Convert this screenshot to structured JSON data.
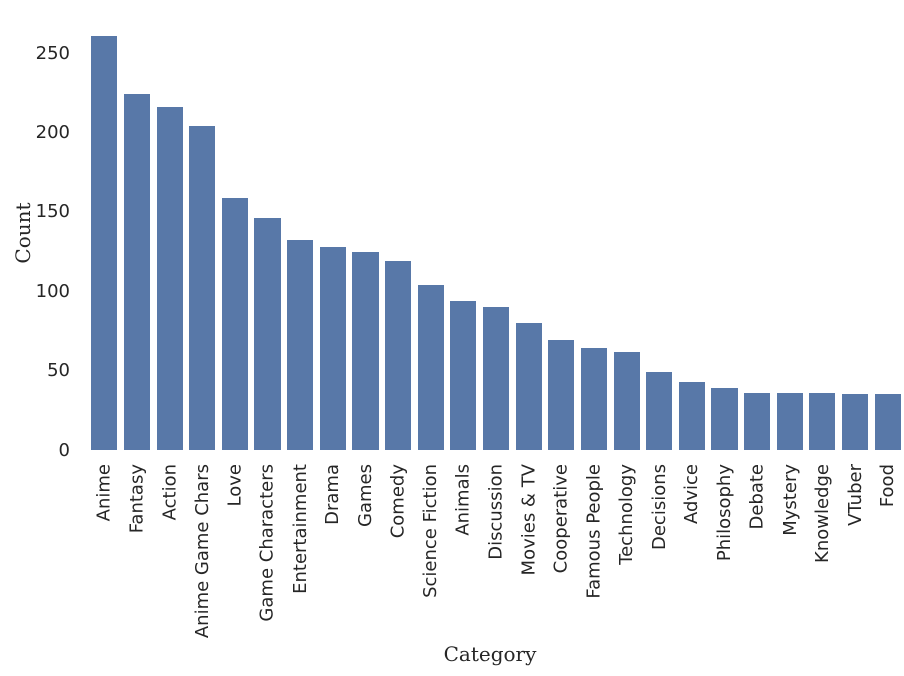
{
  "chart_data": {
    "type": "bar",
    "title": "",
    "xlabel": "Category",
    "ylabel": "Count",
    "categories": [
      "Anime",
      "Fantasy",
      "Action",
      "Anime Game Chars",
      "Love",
      "Game Characters",
      "Entertainment",
      "Drama",
      "Games",
      "Comedy",
      "Science Fiction",
      "Animals",
      "Discussion",
      "Movies & TV",
      "Cooperative",
      "Famous People",
      "Technology",
      "Decisions",
      "Advice",
      "Philosophy",
      "Debate",
      "Mystery",
      "Knowledge",
      "VTuber",
      "Food"
    ],
    "values": [
      261,
      224,
      216,
      204,
      159,
      146,
      132,
      128,
      125,
      119,
      104,
      94,
      90,
      80,
      69,
      64,
      62,
      49,
      43,
      39,
      36,
      36,
      36,
      35,
      35
    ],
    "yticks": [
      0,
      50,
      100,
      150,
      200,
      250
    ],
    "ylim": [
      0,
      274
    ],
    "grid": false,
    "legend": null,
    "xtick_rotation": 90,
    "bar_color": "#5878a8",
    "text_color": "#262626",
    "background": "#ffffff"
  }
}
